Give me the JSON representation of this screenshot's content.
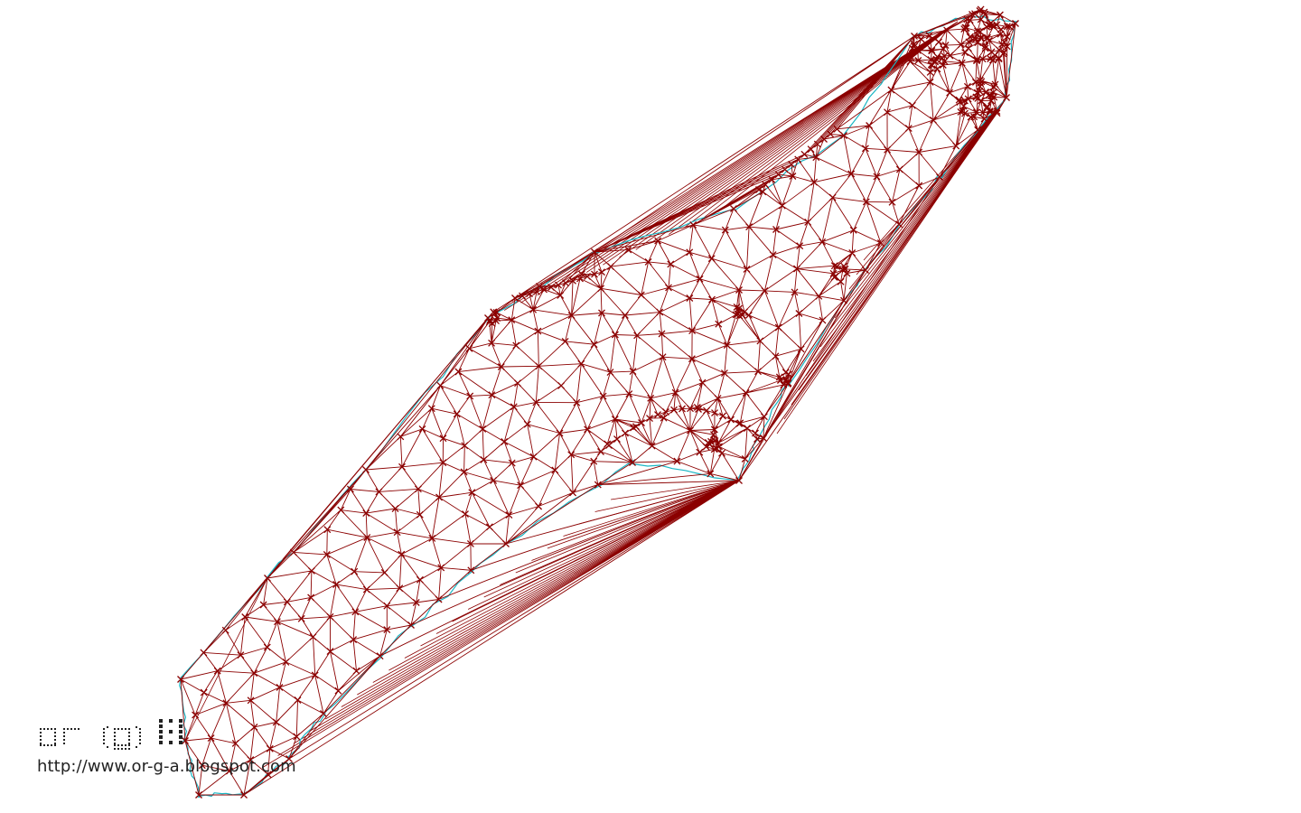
{
  "colors": {
    "edge": "#8b0000",
    "vertex": "#8b0000",
    "boundary": "#1ab6c4",
    "background": "#ffffff",
    "logo": "#222222"
  },
  "icons": {
    "logo": "pixel-logo-icon"
  },
  "logo_text": "or(g)a",
  "site_url": "http://www.or-g-a.blogspot.com"
}
